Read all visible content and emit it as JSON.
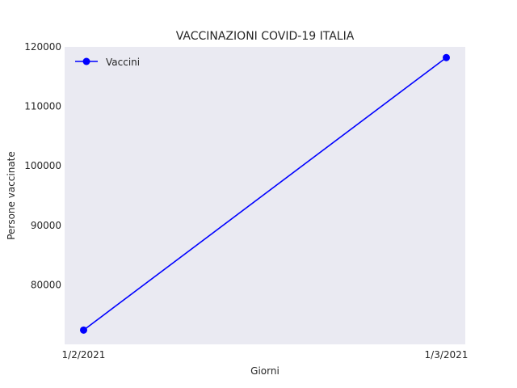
{
  "chart_data": {
    "type": "line",
    "title": "VACCINAZIONI COVID-19 ITALIA",
    "xlabel": "Giorni",
    "ylabel": "Persone vaccinate",
    "categories": [
      "1/2/2021",
      "1/3/2021"
    ],
    "series": [
      {
        "name": "Vaccini",
        "values": [
          72400,
          118200
        ],
        "color": "#0000ff",
        "marker": "circle"
      }
    ],
    "yticks": [
      80000,
      90000,
      100000,
      110000,
      120000
    ],
    "ylim": [
      70000,
      120000
    ],
    "grid": false,
    "legend_position": "upper-left",
    "plot_background": "#eaeaf2"
  }
}
